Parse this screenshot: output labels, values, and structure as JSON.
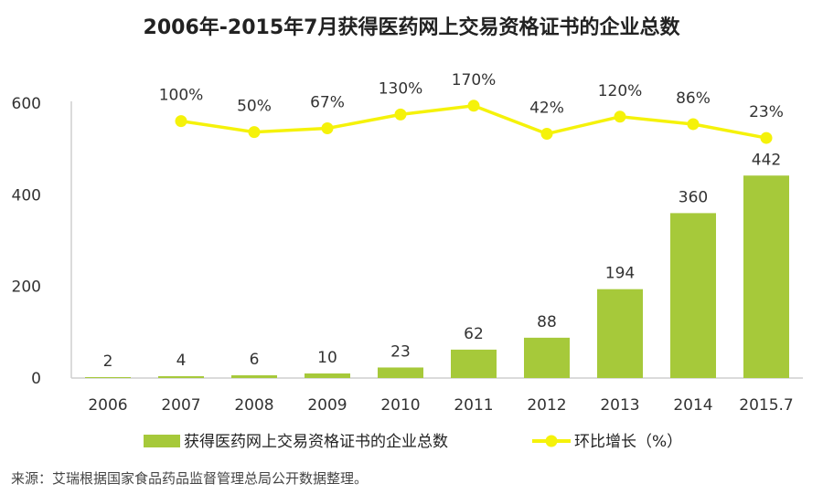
{
  "chart_data": {
    "type": "bar+line",
    "title": "2006年-2015年7月获得医药网上交易资格证书的企业总数",
    "categories": [
      "2006",
      "2007",
      "2008",
      "2009",
      "2010",
      "2011",
      "2012",
      "2013",
      "2014",
      "2015.7"
    ],
    "series": [
      {
        "name": "获得医药网上交易资格证书的企业总数",
        "type": "bar",
        "color": "#a6c93a",
        "values": [
          2,
          4,
          6,
          10,
          23,
          62,
          88,
          194,
          360,
          442
        ]
      },
      {
        "name": "环比增长（%）",
        "type": "line",
        "color": "#f5f20a",
        "values": [
          null,
          100,
          50,
          67,
          130,
          170,
          42,
          120,
          86,
          23
        ],
        "labels": [
          "",
          "100%",
          "50%",
          "67%",
          "130%",
          "170%",
          "42%",
          "120%",
          "86%",
          "23%"
        ]
      }
    ],
    "y_ticks": [
      "0",
      "200",
      "400",
      "600"
    ],
    "ylim": [
      0,
      600
    ],
    "grid": false,
    "legend_position": "bottom"
  },
  "source": "来源：艾瑞根据国家食品药品监督管理总局公开数据整理。"
}
